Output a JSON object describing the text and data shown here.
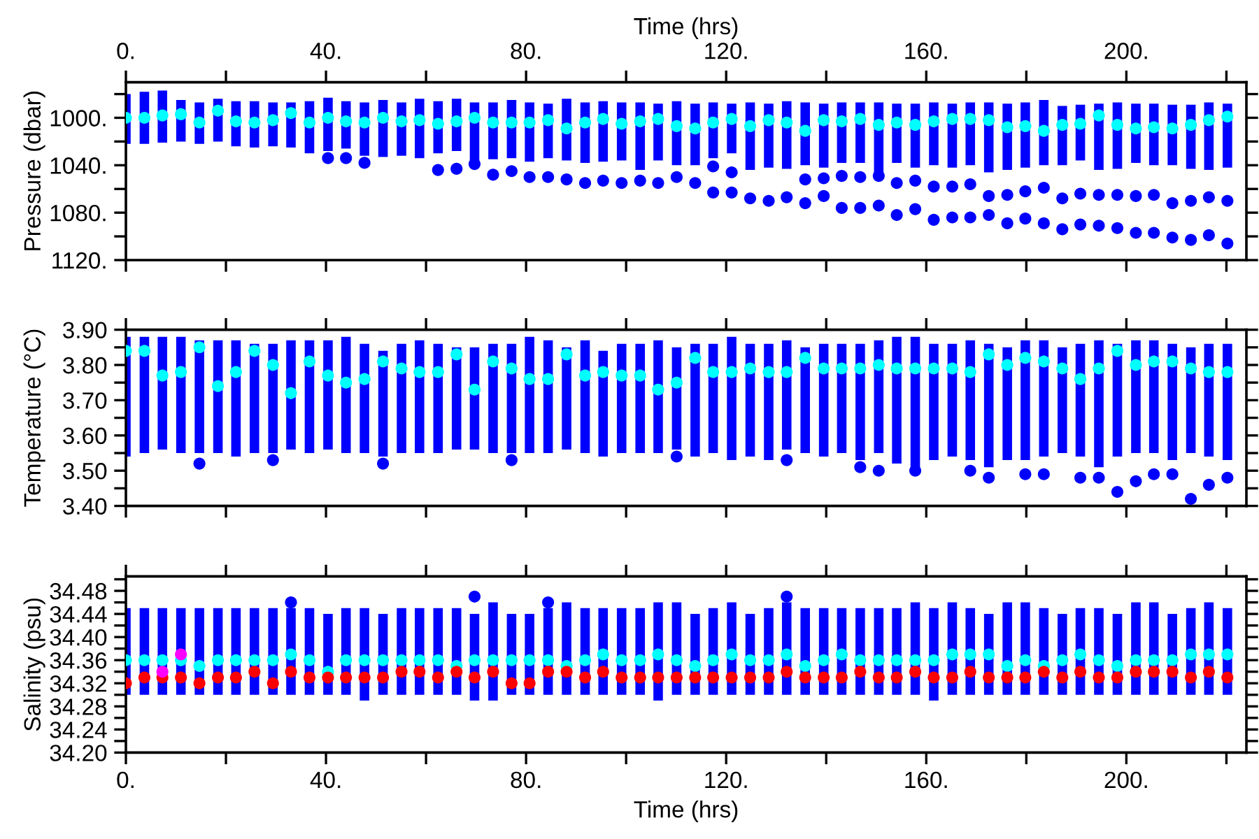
{
  "chart_data": [
    {
      "type": "scatter",
      "ylabel": "Pressure (dbar)",
      "x2label": "Time (hrs)",
      "marker": "circle",
      "tick_labels": "y",
      "xlim": [
        0,
        224
      ],
      "x2lim": [
        0,
        224
      ],
      "xticks": [
        {
          "value": 0,
          "label": null
        },
        {
          "value": 20,
          "label": null
        },
        {
          "value": 40,
          "label": null
        },
        {
          "value": 60,
          "label": null
        },
        {
          "value": 80,
          "label": null
        },
        {
          "value": 100,
          "label": null
        },
        {
          "value": 120,
          "label": null
        },
        {
          "value": 140,
          "label": null
        },
        {
          "value": 160,
          "label": null
        },
        {
          "value": 180,
          "label": null
        },
        {
          "value": 200,
          "label": null
        },
        {
          "value": 220,
          "label": null
        }
      ],
      "x2ticks": [
        {
          "value": 0,
          "label": "0."
        },
        {
          "value": 20,
          "label": null
        },
        {
          "value": 40,
          "label": "40."
        },
        {
          "value": 60,
          "label": null
        },
        {
          "value": 80,
          "label": "80."
        },
        {
          "value": 100,
          "label": null
        },
        {
          "value": 120,
          "label": "120."
        },
        {
          "value": 140,
          "label": null
        },
        {
          "value": 160,
          "label": "160."
        },
        {
          "value": 180,
          "label": null
        },
        {
          "value": 200,
          "label": "200."
        },
        {
          "value": 220,
          "label": null
        }
      ],
      "ylim": [
        1120,
        970
      ],
      "yticks": [
        {
          "value": 980,
          "label": null
        },
        {
          "value": 1000,
          "label": "1000."
        },
        {
          "value": 1020,
          "label": null
        },
        {
          "value": 1040,
          "label": "1040."
        },
        {
          "value": 1060,
          "label": null
        },
        {
          "value": 1080,
          "label": "1080."
        },
        {
          "value": 1100,
          "label": null
        },
        {
          "value": 1120,
          "label": "1120."
        }
      ],
      "x": [
        0,
        3.7,
        7.3,
        11.0,
        14.7,
        18.4,
        22.0,
        25.7,
        29.4,
        33.0,
        36.7,
        40.4,
        44.0,
        47.7,
        51.4,
        55.1,
        58.7,
        62.4,
        66.1,
        69.7,
        73.4,
        77.1,
        80.7,
        84.4,
        88.1,
        91.8,
        95.4,
        99.1,
        102.8,
        106.4,
        110.1,
        113.8,
        117.4,
        121.1,
        124.8,
        128.5,
        132.1,
        135.8,
        139.5,
        143.1,
        146.8,
        150.5,
        154.1,
        157.8,
        161.5,
        165.2,
        168.8,
        172.5,
        176.2,
        179.8,
        183.5,
        187.2,
        190.8,
        194.5,
        198.2,
        201.9,
        205.5,
        209.2,
        212.9,
        216.5,
        220.2
      ],
      "series": [
        {
          "type": "bar",
          "color": "#0000ff",
          "base": [
            980,
            978,
            977,
            985,
            987,
            984,
            986,
            986,
            987,
            987,
            986,
            983,
            986,
            987,
            985,
            987,
            984,
            986,
            984,
            987,
            987,
            985,
            987,
            988,
            984,
            987,
            986,
            987,
            987,
            988,
            986,
            988,
            987,
            988,
            987,
            988,
            986,
            987,
            988,
            987,
            987,
            987,
            988,
            988,
            987,
            988,
            987,
            987,
            988,
            987,
            985,
            990,
            989,
            988,
            987,
            988,
            988,
            989,
            989,
            987,
            988
          ],
          "values": [
            42,
            44,
            44,
            35,
            35,
            36,
            38,
            39,
            37,
            38,
            44,
            45,
            40,
            45,
            48,
            45,
            50,
            44,
            44,
            49,
            48,
            49,
            50,
            46,
            52,
            51,
            51,
            49,
            57,
            48,
            54,
            52,
            47,
            42,
            57,
            54,
            57,
            53,
            54,
            51,
            51,
            59,
            50,
            54,
            53,
            54,
            53,
            59,
            56,
            55,
            55,
            50,
            47,
            56,
            56,
            50,
            52,
            51,
            54,
            57,
            54
          ]
        },
        {
          "color": "#0000ff",
          "x": [
            40.4,
            44.0,
            47.7,
            62.4,
            66.1,
            69.7,
            73.4,
            77.1,
            80.7,
            84.4,
            88.1,
            91.8,
            95.4,
            99.1,
            102.8,
            106.4,
            110.1,
            113.8,
            117.4,
            121.1,
            124.8,
            128.5,
            132.1,
            135.8,
            139.5,
            143.1,
            146.8,
            150.5,
            154.1,
            157.8,
            161.5,
            165.2,
            168.8,
            172.5,
            176.2,
            179.8,
            183.5,
            187.2,
            190.8,
            194.5,
            198.2,
            201.9,
            205.5,
            209.2,
            212.9,
            216.5,
            220.2,
            117.4,
            121.1,
            135.8,
            139.5,
            143.1,
            146.8,
            150.5,
            154.1,
            157.8,
            161.5,
            165.2,
            168.8,
            172.5,
            176.2,
            179.8,
            183.5,
            187.2,
            190.8,
            194.5,
            198.2,
            201.9,
            205.5,
            209.2,
            212.9,
            216.5,
            220.2
          ],
          "values": [
            1034,
            1034,
            1038,
            1044,
            1043,
            1039,
            1048,
            1045,
            1050,
            1050,
            1052,
            1055,
            1053,
            1055,
            1053,
            1055,
            1050,
            1055,
            1063,
            1063,
            1068,
            1070,
            1067,
            1072,
            1066,
            1076,
            1076,
            1074,
            1082,
            1077,
            1086,
            1084,
            1084,
            1082,
            1089,
            1085,
            1089,
            1094,
            1090,
            1091,
            1093,
            1097,
            1097,
            1101,
            1103,
            1099,
            1106,
            1041,
            1046,
            1052,
            1051,
            1049,
            1050,
            1049,
            1055,
            1053,
            1058,
            1058,
            1056,
            1066,
            1065,
            1062,
            1059,
            1068,
            1064,
            1065,
            1065,
            1066,
            1065,
            1072,
            1070,
            1067,
            1070
          ]
        },
        {
          "color": "#00ffff",
          "values": [
            1000,
            1000,
            998,
            997,
            1004,
            994,
            1003,
            1004,
            1002,
            996,
            1004,
            1000,
            1003,
            1004,
            1000,
            1003,
            1002,
            1005,
            1003,
            1000,
            1004,
            1004,
            1004,
            1002,
            1009,
            1004,
            1001,
            1005,
            1003,
            1001,
            1007,
            1009,
            1004,
            1001,
            1007,
            1002,
            1004,
            1011,
            1002,
            1003,
            1001,
            1006,
            1004,
            1006,
            1003,
            1001,
            1001,
            1002,
            1008,
            1007,
            1011,
            1006,
            1005,
            998,
            1006,
            1009,
            1008,
            1009,
            1006,
            1002,
            999
          ]
        }
      ]
    },
    {
      "type": "scatter",
      "ylabel": "Temperature (°C)",
      "marker": "circle",
      "tick_labels": "y",
      "xlim": [
        0,
        224
      ],
      "xticks": [
        {
          "value": 0,
          "label": null
        },
        {
          "value": 20,
          "label": null
        },
        {
          "value": 40,
          "label": null
        },
        {
          "value": 60,
          "label": null
        },
        {
          "value": 80,
          "label": null
        },
        {
          "value": 100,
          "label": null
        },
        {
          "value": 120,
          "label": null
        },
        {
          "value": 140,
          "label": null
        },
        {
          "value": 160,
          "label": null
        },
        {
          "value": 180,
          "label": null
        },
        {
          "value": 200,
          "label": null
        },
        {
          "value": 220,
          "label": null
        }
      ],
      "ylim": [
        3.4,
        3.9
      ],
      "yticks": [
        {
          "value": 3.4,
          "label": "3.40"
        },
        {
          "value": 3.45,
          "label": null
        },
        {
          "value": 3.5,
          "label": "3.50"
        },
        {
          "value": 3.55,
          "label": null
        },
        {
          "value": 3.6,
          "label": "3.60"
        },
        {
          "value": 3.65,
          "label": null
        },
        {
          "value": 3.7,
          "label": "3.70"
        },
        {
          "value": 3.75,
          "label": null
        },
        {
          "value": 3.8,
          "label": "3.80"
        },
        {
          "value": 3.85,
          "label": null
        },
        {
          "value": 3.9,
          "label": "3.90"
        }
      ],
      "x": [
        0,
        3.7,
        7.3,
        11.0,
        14.7,
        18.4,
        22.0,
        25.7,
        29.4,
        33.0,
        36.7,
        40.4,
        44.0,
        47.7,
        51.4,
        55.1,
        58.7,
        62.4,
        66.1,
        69.7,
        73.4,
        77.1,
        80.7,
        84.4,
        88.1,
        91.8,
        95.4,
        99.1,
        102.8,
        106.4,
        110.1,
        113.8,
        117.4,
        121.1,
        124.8,
        128.5,
        132.1,
        135.8,
        139.5,
        143.1,
        146.8,
        150.5,
        154.1,
        157.8,
        161.5,
        165.2,
        168.8,
        172.5,
        176.2,
        179.8,
        183.5,
        187.2,
        190.8,
        194.5,
        198.2,
        201.9,
        205.5,
        209.2,
        212.9,
        216.5,
        220.2
      ],
      "series": [
        {
          "type": "bar",
          "color": "#0000ff",
          "base": [
            3.54,
            3.55,
            3.56,
            3.55,
            3.55,
            3.55,
            3.54,
            3.55,
            3.55,
            3.56,
            3.55,
            3.56,
            3.55,
            3.55,
            3.54,
            3.55,
            3.55,
            3.55,
            3.56,
            3.56,
            3.55,
            3.55,
            3.55,
            3.55,
            3.56,
            3.55,
            3.54,
            3.55,
            3.55,
            3.55,
            3.56,
            3.54,
            3.55,
            3.53,
            3.54,
            3.53,
            3.56,
            3.55,
            3.54,
            3.55,
            3.53,
            3.55,
            3.52,
            3.51,
            3.53,
            3.54,
            3.53,
            3.51,
            3.53,
            3.53,
            3.54,
            3.55,
            3.54,
            3.51,
            3.54,
            3.55,
            3.55,
            3.53,
            3.55,
            3.54,
            3.53
          ],
          "values": [
            0.34,
            0.33,
            0.32,
            0.33,
            0.32,
            0.32,
            0.33,
            0.31,
            0.31,
            0.31,
            0.32,
            0.31,
            0.33,
            0.31,
            0.3,
            0.31,
            0.32,
            0.31,
            0.29,
            0.29,
            0.31,
            0.31,
            0.33,
            0.32,
            0.29,
            0.32,
            0.3,
            0.31,
            0.31,
            0.32,
            0.29,
            0.32,
            0.31,
            0.35,
            0.32,
            0.33,
            0.31,
            0.3,
            0.32,
            0.31,
            0.33,
            0.32,
            0.36,
            0.37,
            0.33,
            0.32,
            0.34,
            0.35,
            0.32,
            0.34,
            0.33,
            0.3,
            0.32,
            0.36,
            0.32,
            0.32,
            0.32,
            0.33,
            0.3,
            0.32,
            0.33
          ]
        },
        {
          "color": "#0000ff",
          "x": [
            14.7,
            29.4,
            51.4,
            77.1,
            110.1,
            132.1,
            146.8,
            150.5,
            157.8,
            168.8,
            172.5,
            179.8,
            183.5,
            190.8,
            194.5,
            198.2,
            201.9,
            205.5,
            209.2,
            212.9,
            216.5,
            220.2
          ],
          "values": [
            3.52,
            3.53,
            3.52,
            3.53,
            3.54,
            3.53,
            3.51,
            3.5,
            3.5,
            3.5,
            3.48,
            3.49,
            3.49,
            3.48,
            3.48,
            3.44,
            3.47,
            3.49,
            3.49,
            3.42,
            3.46,
            3.48
          ]
        },
        {
          "color": "#00ffff",
          "values": [
            3.84,
            3.84,
            3.77,
            3.78,
            3.85,
            3.74,
            3.78,
            3.84,
            3.8,
            3.72,
            3.81,
            3.77,
            3.75,
            3.76,
            3.81,
            3.79,
            3.78,
            3.78,
            3.83,
            3.73,
            3.81,
            3.79,
            3.76,
            3.76,
            3.83,
            3.77,
            3.78,
            3.77,
            3.77,
            3.73,
            3.75,
            3.82,
            3.78,
            3.78,
            3.79,
            3.78,
            3.78,
            3.82,
            3.79,
            3.79,
            3.79,
            3.8,
            3.79,
            3.79,
            3.79,
            3.79,
            3.78,
            3.83,
            3.8,
            3.82,
            3.81,
            3.79,
            3.76,
            3.79,
            3.84,
            3.8,
            3.81,
            3.81,
            3.79,
            3.78,
            3.78
          ]
        }
      ]
    },
    {
      "type": "scatter",
      "ylabel": "Salinity (psu)",
      "xlabel": "Time (hrs)",
      "marker": "circle",
      "xlim": [
        0,
        224
      ],
      "xticks": [
        {
          "value": 0,
          "label": "0."
        },
        {
          "value": 20,
          "label": null
        },
        {
          "value": 40,
          "label": "40."
        },
        {
          "value": 60,
          "label": null
        },
        {
          "value": 80,
          "label": "80."
        },
        {
          "value": 100,
          "label": null
        },
        {
          "value": 120,
          "label": "120."
        },
        {
          "value": 140,
          "label": null
        },
        {
          "value": 160,
          "label": "160."
        },
        {
          "value": 180,
          "label": null
        },
        {
          "value": 200,
          "label": "200."
        },
        {
          "value": 220,
          "label": null
        }
      ],
      "ylim": [
        34.2,
        34.505
      ],
      "yticks": [
        {
          "value": 34.2,
          "label": "34.20"
        },
        {
          "value": 34.22,
          "label": null
        },
        {
          "value": 34.24,
          "label": "34.24"
        },
        {
          "value": 34.26,
          "label": null
        },
        {
          "value": 34.28,
          "label": "34.28"
        },
        {
          "value": 34.3,
          "label": null
        },
        {
          "value": 34.32,
          "label": "34.32"
        },
        {
          "value": 34.34,
          "label": null
        },
        {
          "value": 34.36,
          "label": "34.36"
        },
        {
          "value": 34.38,
          "label": null
        },
        {
          "value": 34.4,
          "label": "34.40"
        },
        {
          "value": 34.42,
          "label": null
        },
        {
          "value": 34.44,
          "label": "34.44"
        },
        {
          "value": 34.46,
          "label": null
        },
        {
          "value": 34.48,
          "label": "34.48"
        },
        {
          "value": 34.5,
          "label": null
        }
      ],
      "x": [
        0,
        3.7,
        7.3,
        11.0,
        14.7,
        18.4,
        22.0,
        25.7,
        29.4,
        33.0,
        36.7,
        40.4,
        44.0,
        47.7,
        51.4,
        55.1,
        58.7,
        62.4,
        66.1,
        69.7,
        73.4,
        77.1,
        80.7,
        84.4,
        88.1,
        91.8,
        95.4,
        99.1,
        102.8,
        106.4,
        110.1,
        113.8,
        117.4,
        121.1,
        124.8,
        128.5,
        132.1,
        135.8,
        139.5,
        143.1,
        146.8,
        150.5,
        154.1,
        157.8,
        161.5,
        165.2,
        168.8,
        172.5,
        176.2,
        179.8,
        183.5,
        187.2,
        190.8,
        194.5,
        198.2,
        201.9,
        205.5,
        209.2,
        212.9,
        216.5,
        220.2
      ],
      "series": [
        {
          "type": "bar",
          "color": "#0000ff",
          "base": [
            34.3,
            34.3,
            34.3,
            34.3,
            34.3,
            34.3,
            34.3,
            34.3,
            34.3,
            34.3,
            34.3,
            34.3,
            34.3,
            34.29,
            34.3,
            34.3,
            34.3,
            34.3,
            34.3,
            34.29,
            34.29,
            34.3,
            34.3,
            34.3,
            34.3,
            34.3,
            34.3,
            34.3,
            34.3,
            34.29,
            34.3,
            34.3,
            34.3,
            34.3,
            34.3,
            34.3,
            34.3,
            34.3,
            34.3,
            34.3,
            34.3,
            34.3,
            34.3,
            34.3,
            34.29,
            34.3,
            34.3,
            34.3,
            34.3,
            34.3,
            34.3,
            34.3,
            34.3,
            34.3,
            34.3,
            34.3,
            34.3,
            34.3,
            34.3,
            34.3,
            34.3
          ],
          "values": [
            0.15,
            0.15,
            0.15,
            0.15,
            0.15,
            0.15,
            0.15,
            0.15,
            0.15,
            0.15,
            0.15,
            0.14,
            0.15,
            0.16,
            0.14,
            0.15,
            0.15,
            0.15,
            0.15,
            0.15,
            0.17,
            0.14,
            0.14,
            0.15,
            0.16,
            0.15,
            0.15,
            0.15,
            0.15,
            0.17,
            0.16,
            0.14,
            0.15,
            0.16,
            0.14,
            0.15,
            0.16,
            0.15,
            0.15,
            0.15,
            0.15,
            0.15,
            0.15,
            0.16,
            0.16,
            0.16,
            0.15,
            0.14,
            0.16,
            0.16,
            0.15,
            0.14,
            0.15,
            0.15,
            0.14,
            0.16,
            0.16,
            0.14,
            0.15,
            0.16,
            0.15
          ]
        },
        {
          "color": "#0000ff",
          "x": [
            33.0,
            69.7,
            84.4,
            132.1
          ],
          "values": [
            34.46,
            34.47,
            34.46,
            34.47
          ]
        },
        {
          "color": "#00ffff",
          "values": [
            34.36,
            34.36,
            34.36,
            34.36,
            34.35,
            34.36,
            34.36,
            34.36,
            34.36,
            34.37,
            34.36,
            34.34,
            34.36,
            34.36,
            34.36,
            34.36,
            34.36,
            34.36,
            34.35,
            34.36,
            34.36,
            34.36,
            34.36,
            34.36,
            34.35,
            34.36,
            34.37,
            34.36,
            34.36,
            34.37,
            34.36,
            34.35,
            34.36,
            34.37,
            34.36,
            34.36,
            34.37,
            34.35,
            34.36,
            34.37,
            34.36,
            34.36,
            34.36,
            34.36,
            34.36,
            34.37,
            34.37,
            34.37,
            34.35,
            34.36,
            34.35,
            34.36,
            34.37,
            34.36,
            34.35,
            34.36,
            34.36,
            34.36,
            34.37,
            34.37,
            34.37
          ]
        },
        {
          "color": "#ff0000",
          "values": [
            34.32,
            34.33,
            34.33,
            34.33,
            34.32,
            34.33,
            34.33,
            34.34,
            34.32,
            34.34,
            34.33,
            34.33,
            34.33,
            34.33,
            34.33,
            34.34,
            34.34,
            34.33,
            34.34,
            34.33,
            34.34,
            34.32,
            34.32,
            34.34,
            34.34,
            34.33,
            34.34,
            34.33,
            34.33,
            34.33,
            34.33,
            34.33,
            34.33,
            34.33,
            34.33,
            34.33,
            34.34,
            34.33,
            34.33,
            34.33,
            34.34,
            34.33,
            34.33,
            34.34,
            34.33,
            34.33,
            34.34,
            34.33,
            34.33,
            34.33,
            34.34,
            34.33,
            34.34,
            34.33,
            34.33,
            34.34,
            34.34,
            34.34,
            34.33,
            34.34,
            34.33
          ]
        },
        {
          "color": "#ff00ff",
          "x": [
            7.3,
            11.0
          ],
          "values": [
            34.34,
            34.37
          ]
        }
      ]
    }
  ]
}
